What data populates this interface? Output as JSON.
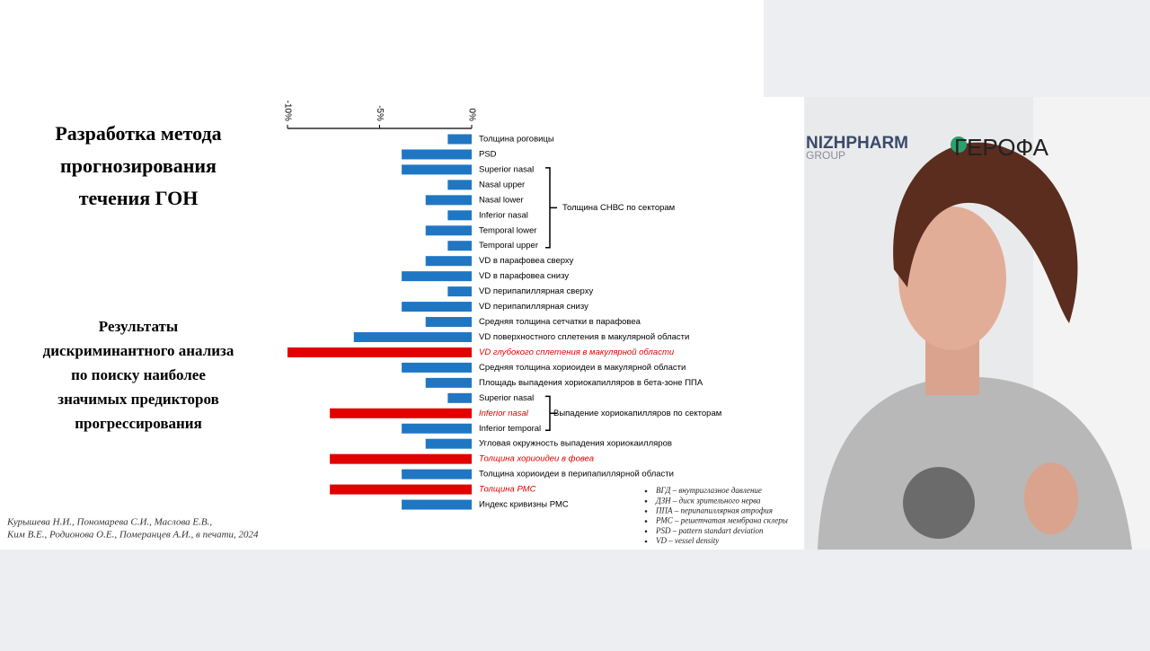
{
  "slide": {
    "title_lines": [
      "Разработка метода",
      "прогнозирования",
      "течения ГОН"
    ],
    "subtitle_lines": [
      "Результаты",
      "дискриминантного анализа",
      "по поиску наиболее",
      "значимых предикторов",
      "прогрессирования"
    ],
    "citation_lines": [
      "Курышева Н.И., Пономарева С.И., Маслова Е.В.,",
      "Ким В.Е., Родионова О.Е., Померанцев А.И.,  в печати, 2024"
    ],
    "notes": [
      "ВГД – внутриглазное давление",
      "ДЗН – диск зрительного нерва",
      "ППА – перипапиллярная атрофия",
      "РМС – решетчатая мембрана склеры",
      "PSD – pattern standart deviation",
      "VD – vessel density"
    ]
  },
  "chart_data": {
    "type": "bar",
    "categories": [
      "Толщина роговицы",
      "PSD",
      "Superior nasal",
      "Nasal upper",
      "Nasal lower",
      "Inferior nasal",
      "Temporal lower",
      "Temporal upper",
      "VD в парафовеа сверху",
      "VD в парафовеа снизу",
      "VD перипапиллярная сверху",
      "VD перипапиллярная снизу",
      "Средняя толщина сетчатки в парафовеа",
      "VD поверхностного сплетения в макулярной области",
      "VD глубокого сплетения в макулярной области",
      "Средняя толщина хориоидеи в макулярной области",
      "Площадь выпадения хориокапилляров в бета-зоне ППА",
      "Superior nasal",
      "Inferior nasal",
      "Inferior temporal",
      "Угловая окружность выпадения хориокаилляров",
      "Толщина хориоидеи в фовеа",
      "Толщина хориоидеи в перипапиллярной области",
      "Толщина РМС",
      "Индекс кривизны РМС"
    ],
    "values": [
      -1.3,
      -3.8,
      -3.8,
      -1.3,
      -2.5,
      -1.3,
      -2.5,
      -1.3,
      -2.5,
      -3.8,
      -1.3,
      -3.8,
      -2.5,
      -6.4,
      -10,
      -3.8,
      -2.5,
      -1.3,
      -7.7,
      -3.8,
      -2.5,
      -7.7,
      -3.8,
      -7.7,
      -3.8
    ],
    "colors": [
      "#1f77c4",
      "#1f77c4",
      "#1f77c4",
      "#1f77c4",
      "#1f77c4",
      "#1f77c4",
      "#1f77c4",
      "#1f77c4",
      "#1f77c4",
      "#1f77c4",
      "#1f77c4",
      "#1f77c4",
      "#1f77c4",
      "#1f77c4",
      "#e00000",
      "#1f77c4",
      "#1f77c4",
      "#1f77c4",
      "#e00000",
      "#1f77c4",
      "#1f77c4",
      "#e00000",
      "#1f77c4",
      "#e00000",
      "#1f77c4"
    ],
    "xlim": [
      -10,
      0
    ],
    "xticks": [
      {
        "value": -10,
        "label": "-10%"
      },
      {
        "value": -5,
        "label": "-5%"
      },
      {
        "value": 0,
        "label": "0%"
      }
    ],
    "annotations": [
      "Толщина СНВС по секторам",
      "Выпадение хориокапилляров по секторам"
    ]
  },
  "video": {
    "logos": [
      "NIZHPHARM",
      "GROUP",
      "ГЕРОФА"
    ]
  }
}
